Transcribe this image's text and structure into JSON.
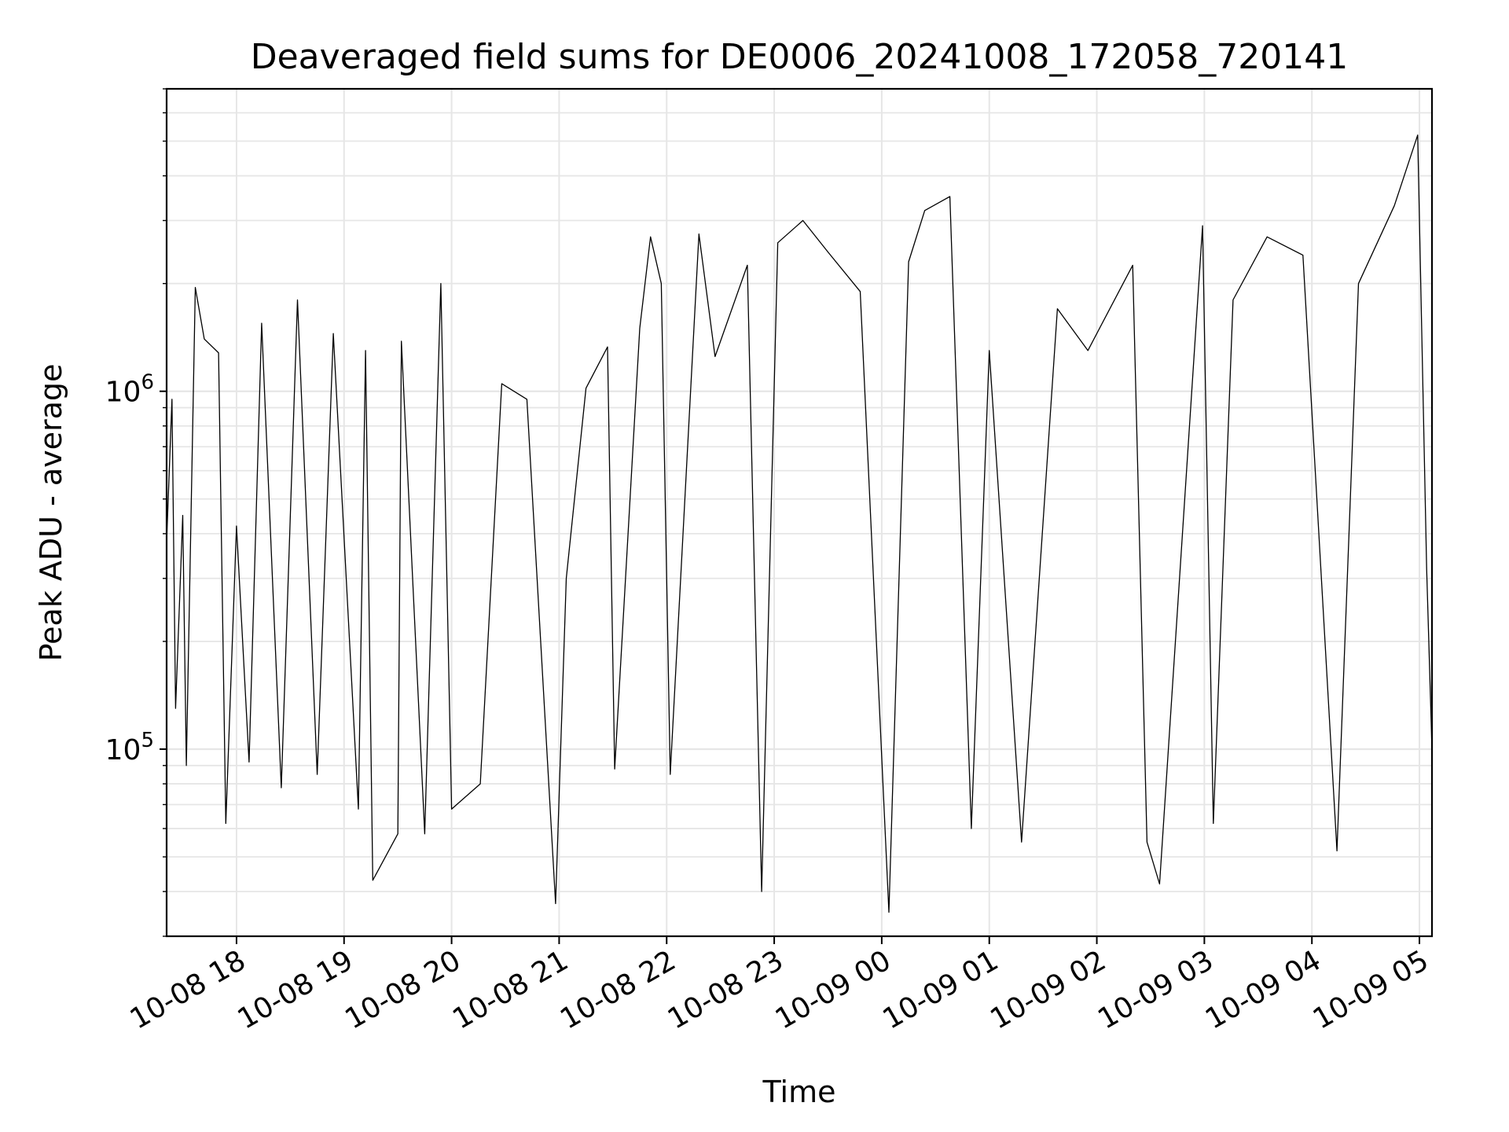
{
  "chart_data": {
    "type": "line",
    "title": "Deaveraged field sums for DE0006_20241008_172058_720141",
    "xlabel": "Time",
    "ylabel": "Peak ADU - average",
    "yscale": "log",
    "ylim": [
      30000,
      7000000
    ],
    "xlim": [
      "2024-10-08 17:21",
      "2024-10-09 05:07"
    ],
    "grid": "on (major and minor)",
    "line_color": "#000000",
    "x_ticks": [
      {
        "value": "2024-10-08 18:00",
        "label": "10-08 18"
      },
      {
        "value": "2024-10-08 19:00",
        "label": "10-08 19"
      },
      {
        "value": "2024-10-08 20:00",
        "label": "10-08 20"
      },
      {
        "value": "2024-10-08 21:00",
        "label": "10-08 21"
      },
      {
        "value": "2024-10-08 22:00",
        "label": "10-08 22"
      },
      {
        "value": "2024-10-08 23:00",
        "label": "10-08 23"
      },
      {
        "value": "2024-10-09 00:00",
        "label": "10-09 00"
      },
      {
        "value": "2024-10-09 01:00",
        "label": "10-09 01"
      },
      {
        "value": "2024-10-09 02:00",
        "label": "10-09 02"
      },
      {
        "value": "2024-10-09 03:00",
        "label": "10-09 03"
      },
      {
        "value": "2024-10-09 04:00",
        "label": "10-09 04"
      },
      {
        "value": "2024-10-09 05:00",
        "label": "10-09 05"
      }
    ],
    "y_ticks": [
      {
        "value": 100000,
        "base": "10",
        "exp": "5"
      },
      {
        "value": 1000000,
        "base": "10",
        "exp": "6"
      }
    ],
    "series": [
      {
        "points": [
          [
            "2024-10-08 17:21",
            380000
          ],
          [
            "2024-10-08 17:24",
            950000
          ],
          [
            "2024-10-08 17:26",
            130000
          ],
          [
            "2024-10-08 17:30",
            450000
          ],
          [
            "2024-10-08 17:32",
            90000
          ],
          [
            "2024-10-08 17:37",
            1950000
          ],
          [
            "2024-10-08 17:42",
            1400000
          ],
          [
            "2024-10-08 17:50",
            1280000
          ],
          [
            "2024-10-08 17:54",
            62000
          ],
          [
            "2024-10-08 18:00",
            420000
          ],
          [
            "2024-10-08 18:07",
            92000
          ],
          [
            "2024-10-08 18:14",
            1550000
          ],
          [
            "2024-10-08 18:25",
            78000
          ],
          [
            "2024-10-08 18:34",
            1800000
          ],
          [
            "2024-10-08 18:45",
            85000
          ],
          [
            "2024-10-08 18:54",
            1450000
          ],
          [
            "2024-10-08 19:08",
            68000
          ],
          [
            "2024-10-08 19:12",
            1300000
          ],
          [
            "2024-10-08 19:16",
            43000
          ],
          [
            "2024-10-08 19:30",
            58000
          ],
          [
            "2024-10-08 19:32",
            1380000
          ],
          [
            "2024-10-08 19:45",
            58000
          ],
          [
            "2024-10-08 19:54",
            2000000
          ],
          [
            "2024-10-08 20:00",
            68000
          ],
          [
            "2024-10-08 20:16",
            80000
          ],
          [
            "2024-10-08 20:28",
            1050000
          ],
          [
            "2024-10-08 20:42",
            950000
          ],
          [
            "2024-10-08 20:58",
            37000
          ],
          [
            "2024-10-08 21:04",
            300000
          ],
          [
            "2024-10-08 21:15",
            1020000
          ],
          [
            "2024-10-08 21:27",
            1330000
          ],
          [
            "2024-10-08 21:31",
            88000
          ],
          [
            "2024-10-08 21:45",
            1500000
          ],
          [
            "2024-10-08 21:51",
            2700000
          ],
          [
            "2024-10-08 21:57",
            2000000
          ],
          [
            "2024-10-08 22:02",
            85000
          ],
          [
            "2024-10-08 22:18",
            2750000
          ],
          [
            "2024-10-08 22:27",
            1250000
          ],
          [
            "2024-10-08 22:45",
            2250000
          ],
          [
            "2024-10-08 22:53",
            40000
          ],
          [
            "2024-10-08 23:02",
            2600000
          ],
          [
            "2024-10-08 23:16",
            3000000
          ],
          [
            "2024-10-08 23:30",
            2450000
          ],
          [
            "2024-10-08 23:48",
            1900000
          ],
          [
            "2024-10-09 00:04",
            35000
          ],
          [
            "2024-10-09 00:15",
            2300000
          ],
          [
            "2024-10-09 00:24",
            3200000
          ],
          [
            "2024-10-09 00:38",
            3500000
          ],
          [
            "2024-10-09 00:50",
            60000
          ],
          [
            "2024-10-09 01:00",
            1300000
          ],
          [
            "2024-10-09 01:18",
            55000
          ],
          [
            "2024-10-09 01:38",
            1700000
          ],
          [
            "2024-10-09 01:55",
            1300000
          ],
          [
            "2024-10-09 02:20",
            2250000
          ],
          [
            "2024-10-09 02:28",
            55000
          ],
          [
            "2024-10-09 02:35",
            42000
          ],
          [
            "2024-10-09 02:59",
            2900000
          ],
          [
            "2024-10-09 03:05",
            62000
          ],
          [
            "2024-10-09 03:16",
            1800000
          ],
          [
            "2024-10-09 03:35",
            2700000
          ],
          [
            "2024-10-09 03:55",
            2400000
          ],
          [
            "2024-10-09 04:14",
            52000
          ],
          [
            "2024-10-09 04:26",
            2000000
          ],
          [
            "2024-10-09 04:46",
            3300000
          ],
          [
            "2024-10-09 04:59",
            5200000
          ],
          [
            "2024-10-09 05:04",
            320000
          ],
          [
            "2024-10-09 05:07",
            100000
          ]
        ]
      }
    ]
  }
}
